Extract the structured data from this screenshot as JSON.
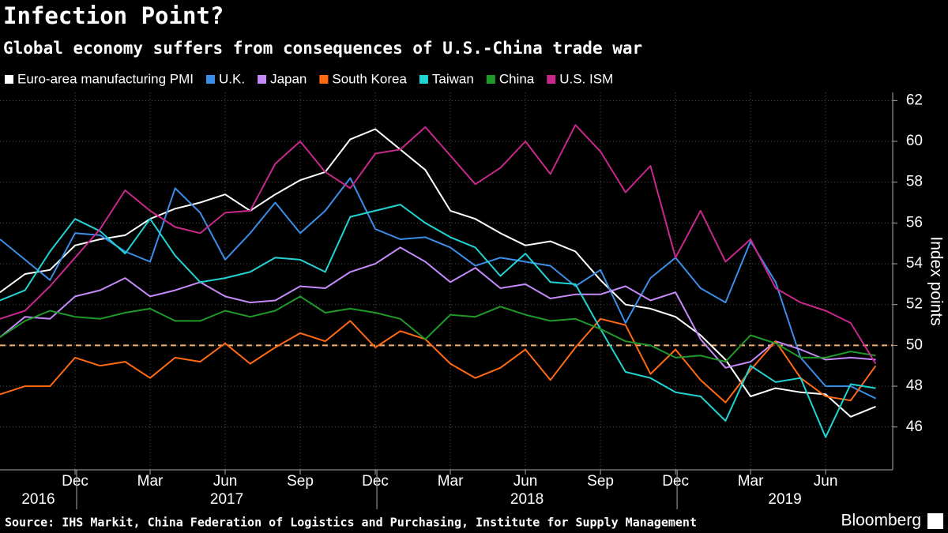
{
  "chart_data": {
    "type": "line",
    "title": "Infection Point?",
    "subtitle": "Global economy suffers from consequences of U.S.-China trade war",
    "y_axis_label": "Index points",
    "source": "Source: IHS Markit, China Federation of Logistics and Purchasing, Institute for Supply Management",
    "logo_text": "Bloomberg",
    "categories": [
      null,
      null,
      null,
      "Dec",
      null,
      null,
      "Mar",
      null,
      null,
      "Jun",
      null,
      null,
      "Sep",
      null,
      null,
      "Dec",
      null,
      null,
      "Mar",
      null,
      null,
      "Jun",
      null,
      null,
      "Sep",
      null,
      null,
      "Dec",
      null,
      null,
      "Mar",
      null,
      null,
      "Jun",
      null,
      null
    ],
    "years": [
      "2016",
      "2017",
      "2018",
      "2019"
    ],
    "ylim": [
      43.9,
      62.4
    ],
    "yticks": [
      46,
      48,
      50,
      52,
      54,
      56,
      58,
      60,
      62
    ],
    "grid": true,
    "legend": "top",
    "reference_line": 50,
    "reference_color": "#f5b070",
    "series": [
      {
        "name": "Euro-area manufacturing PMI",
        "color": "#ffffff",
        "values": [
          52.6,
          53.5,
          53.7,
          54.9,
          55.2,
          55.4,
          56.2,
          56.7,
          57.0,
          57.4,
          56.6,
          57.4,
          58.1,
          58.5,
          60.1,
          60.6,
          59.6,
          58.6,
          56.6,
          56.2,
          55.5,
          54.9,
          55.1,
          54.6,
          53.2,
          52.0,
          51.8,
          51.4,
          50.5,
          49.3,
          47.5,
          47.9,
          47.7,
          47.6,
          46.5,
          47.0
        ]
      },
      {
        "name": "U.K.",
        "color": "#3b8ee8",
        "values": [
          55.2,
          54.2,
          53.2,
          55.5,
          55.4,
          54.6,
          54.1,
          57.7,
          56.5,
          54.2,
          55.5,
          57.0,
          55.5,
          56.6,
          58.2,
          55.7,
          55.2,
          55.3,
          54.8,
          53.9,
          54.3,
          54.1,
          53.9,
          52.9,
          53.7,
          51.1,
          53.3,
          54.3,
          52.8,
          52.1,
          55.1,
          53.1,
          49.4,
          48.0,
          48.0,
          47.4
        ]
      },
      {
        "name": "Japan",
        "color": "#c58af9",
        "values": [
          50.4,
          51.4,
          51.3,
          52.4,
          52.7,
          53.3,
          52.4,
          52.7,
          53.1,
          52.4,
          52.1,
          52.2,
          52.9,
          52.8,
          53.6,
          54.0,
          54.8,
          54.1,
          53.1,
          53.8,
          52.8,
          53.0,
          52.3,
          52.5,
          52.5,
          52.9,
          52.2,
          52.6,
          50.3,
          48.9,
          49.2,
          50.2,
          49.8,
          49.3,
          49.4,
          49.3
        ]
      },
      {
        "name": "South Korea",
        "color": "#ff6a13",
        "values": [
          47.6,
          48.0,
          48.0,
          49.4,
          49.0,
          49.2,
          48.4,
          49.4,
          49.2,
          50.1,
          49.1,
          49.9,
          50.6,
          50.2,
          51.2,
          49.9,
          50.7,
          50.3,
          49.1,
          48.4,
          48.9,
          49.8,
          48.3,
          49.9,
          51.3,
          51.0,
          48.6,
          49.8,
          48.3,
          47.2,
          48.8,
          50.2,
          48.4,
          47.5,
          47.3,
          49.0
        ]
      },
      {
        "name": "Taiwan",
        "color": "#22d3d3",
        "values": [
          52.2,
          52.7,
          54.6,
          56.2,
          55.6,
          54.5,
          56.2,
          54.4,
          53.1,
          53.3,
          53.6,
          54.3,
          54.2,
          53.6,
          56.3,
          56.6,
          56.9,
          56.0,
          55.3,
          54.8,
          53.4,
          54.5,
          53.1,
          53.0,
          50.8,
          48.7,
          48.4,
          47.7,
          47.5,
          46.3,
          49.0,
          48.2,
          48.4,
          45.5,
          48.1,
          47.9
        ]
      },
      {
        "name": "China",
        "color": "#1f9a2a",
        "values": [
          50.4,
          51.2,
          51.7,
          51.4,
          51.3,
          51.6,
          51.8,
          51.2,
          51.2,
          51.7,
          51.4,
          51.7,
          52.4,
          51.6,
          51.8,
          51.6,
          51.3,
          50.3,
          51.5,
          51.4,
          51.9,
          51.5,
          51.2,
          51.3,
          50.8,
          50.2,
          50.0,
          49.4,
          49.5,
          49.2,
          50.5,
          50.1,
          49.4,
          49.4,
          49.7,
          49.5
        ]
      },
      {
        "name": "U.S. ISM",
        "color": "#c8288c",
        "values": [
          51.3,
          51.7,
          52.9,
          54.3,
          55.7,
          57.6,
          56.6,
          55.8,
          55.5,
          56.5,
          56.6,
          58.9,
          60.0,
          58.5,
          57.7,
          59.4,
          59.6,
          60.7,
          59.3,
          57.9,
          58.7,
          60.0,
          58.4,
          60.8,
          59.5,
          57.5,
          58.8,
          54.3,
          56.6,
          54.1,
          55.2,
          52.8,
          52.1,
          51.7,
          51.1,
          49.1
        ]
      }
    ]
  }
}
